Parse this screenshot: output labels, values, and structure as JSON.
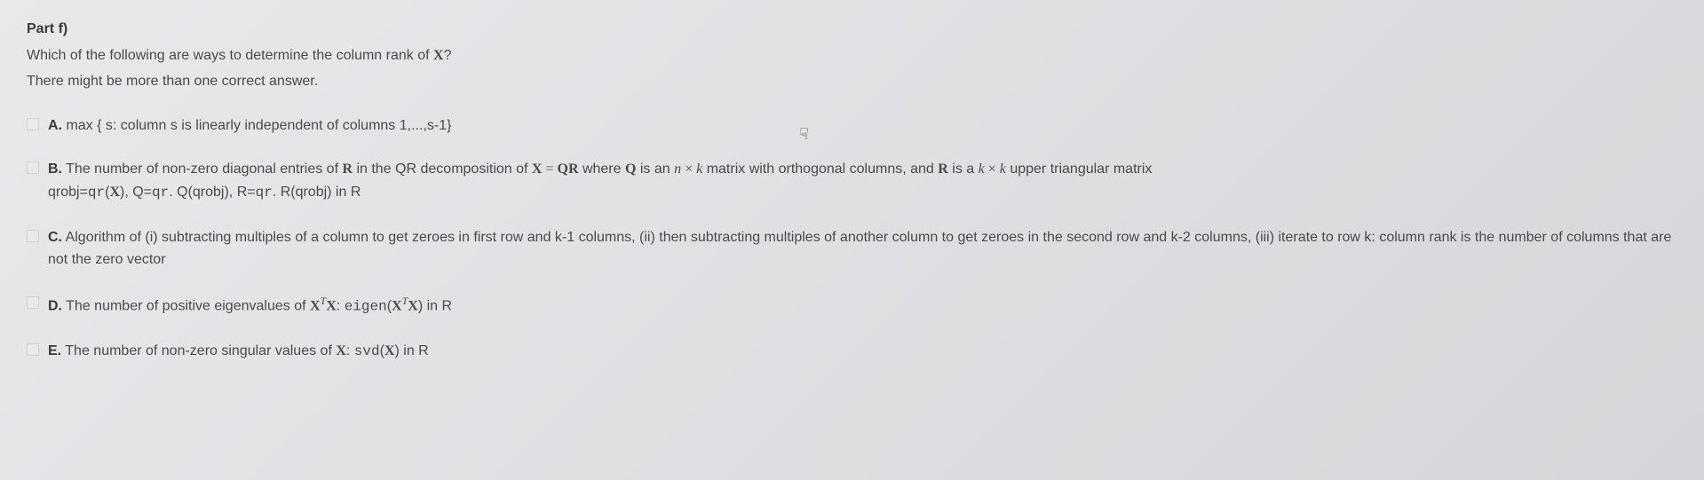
{
  "header": {
    "part_label": "Part f)",
    "question_prefix": "Which of the following are ways to determine the column rank of ",
    "question_var": "X",
    "question_suffix": "?",
    "instruction": "There might be more than one correct answer."
  },
  "options": {
    "a": {
      "letter": "A.",
      "text": " max { s: column s is linearly independent of columns 1,...,s-1}"
    },
    "b": {
      "letter": "B.",
      "text_1": " The number of non-zero diagonal entries of ",
      "var_R1": "R",
      "text_2": " in the QR decomposition of ",
      "var_X": "X",
      "eq": " = ",
      "var_QR": "QR",
      "text_3": " where ",
      "var_Q": "Q",
      "text_4": " is an ",
      "dim1_n": "n",
      "times1": " × ",
      "dim1_k": "k",
      "text_5": " matrix with orthogonal columns, and ",
      "var_R2": "R",
      "text_6": " is a ",
      "dim2_k1": "k",
      "times2": " × ",
      "dim2_k2": "k",
      "text_7": " upper triangular matrix",
      "line2_prefix": "qrobj=",
      "code1": "qr",
      "line2_mid1": "(",
      "var_X2": "X",
      "line2_mid2": "), Q=",
      "code2": "qr",
      "line2_mid3": ". Q(qrobj), R=",
      "code3": "qr",
      "line2_mid4": ". R(qrobj) in R"
    },
    "c": {
      "letter": "C.",
      "text": " Algorithm of (i) subtracting multiples of a column to get zeroes in first row and k-1 columns, (ii) then subtracting multiples of another column to get zeroes in the second row and k-2 columns, (iii) iterate to row k: column rank is the number of columns that are not the zero vector"
    },
    "d": {
      "letter": "D.",
      "text_1": " The number of positive eigenvalues of ",
      "var_X": "X",
      "sup_T": "T",
      "var_X2": "X",
      "text_2": ": ",
      "code": "eigen",
      "text_3": "(",
      "var_X3": "X",
      "sup_T2": "T",
      "var_X4": "X",
      "text_4": ") in R"
    },
    "e": {
      "letter": "E.",
      "text_1": " The number of non-zero singular values of ",
      "var_X": "X",
      "text_2": ": ",
      "code": "svd",
      "text_3": "(",
      "var_X2": "X",
      "text_4": ") in R"
    }
  }
}
